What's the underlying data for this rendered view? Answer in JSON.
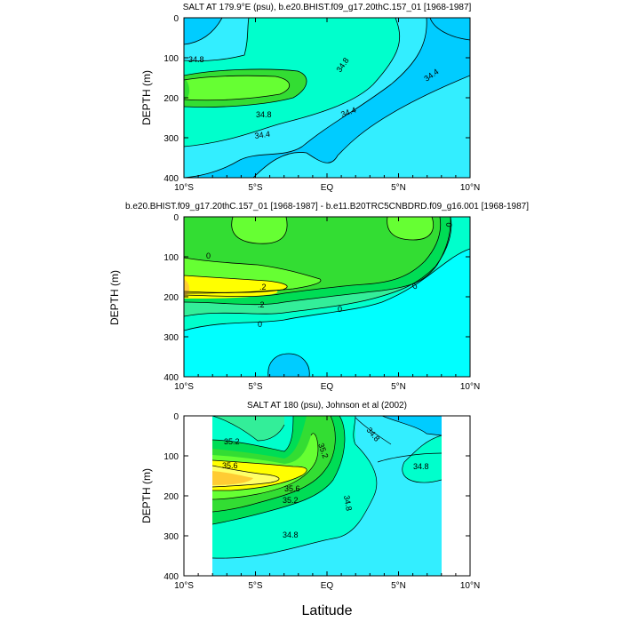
{
  "figure": {
    "xlabel": "Latitude"
  },
  "chart_data": [
    {
      "type": "contour",
      "title": "SALT AT 179.9°E (psu), b.e20.BHIST.f09_g17.20thC.157_01 [1968-1987]",
      "ylabel": "DEPTH (m)",
      "xlim": [
        -10,
        10
      ],
      "ylim": [
        400,
        0
      ],
      "xticks": [
        "10°S",
        "5°S",
        "EQ",
        "5°N",
        "10°N"
      ],
      "yticks": [
        "0",
        "100",
        "200",
        "300",
        "400"
      ],
      "contour_labels": [
        "34.8",
        "34.8",
        "34.4",
        "34.8",
        "34.4",
        "34.4"
      ]
    },
    {
      "type": "contour",
      "title": "b.e20.BHIST.f09_g17.20thC.157_01 [1968-1987] - b.e11.B20TRC5CNBDRD.f09_g16.001 [1968-1987]",
      "ylabel": "DEPTH (m)",
      "xlim": [
        -10,
        10
      ],
      "ylim": [
        400,
        0
      ],
      "xticks": [
        "10°S",
        "5°S",
        "EQ",
        "5°N",
        "10°N"
      ],
      "yticks": [
        "0",
        "100",
        "200",
        "300",
        "400"
      ],
      "contour_labels": [
        "0",
        ".2",
        ".2",
        "0",
        "0",
        "0",
        "0"
      ]
    },
    {
      "type": "contour",
      "title": "SALT AT 180 (psu), Johnson et al (2002)",
      "ylabel": "DEPTH (m)",
      "xlim": [
        -10,
        10
      ],
      "ylim": [
        400,
        0
      ],
      "xticks": [
        "10°S",
        "5°S",
        "EQ",
        "5°N",
        "10°N"
      ],
      "yticks": [
        "0",
        "100",
        "200",
        "300",
        "400"
      ],
      "contour_labels": [
        "35.2",
        "35.6",
        "35.6",
        "35.2",
        "35.2",
        "34.8",
        "34.8",
        "34.8",
        "34.8"
      ]
    }
  ]
}
